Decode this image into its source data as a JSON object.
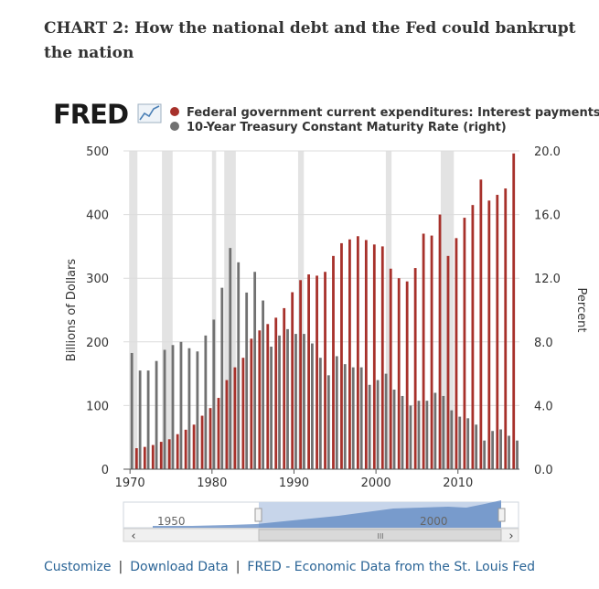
{
  "header": {
    "title": "CHART 2: How the national debt and the Fed could bankrupt the nation"
  },
  "logo_text": "FRED",
  "footer": {
    "customize": "Customize",
    "download": "Download Data",
    "source": "FRED - Economic Data from the St. Louis Fed"
  },
  "navigator": {
    "label_left": "1950",
    "label_right": "2000"
  },
  "chart_data": {
    "type": "bar",
    "title": "",
    "legend_position": "top",
    "grid": true,
    "xlabel": "",
    "x_ticks": [
      "1970",
      "1980",
      "1990",
      "2000",
      "2010"
    ],
    "x_range": [
      1969.2,
      2017.5
    ],
    "y_left": {
      "label": "Billions of Dollars",
      "ticks": [
        "0",
        "100",
        "200",
        "300",
        "400",
        "500"
      ],
      "range": [
        0,
        500
      ]
    },
    "y_right": {
      "label": "Percent",
      "ticks": [
        "0.0",
        "4.0",
        "8.0",
        "12.0",
        "16.0",
        "20.0"
      ],
      "range": [
        0,
        20
      ]
    },
    "recessions": [
      [
        1969.9,
        1970.9
      ],
      [
        1973.9,
        1975.2
      ],
      [
        1980.0,
        1980.5
      ],
      [
        1981.5,
        1982.9
      ],
      [
        1990.5,
        1991.2
      ],
      [
        2001.2,
        2001.9
      ],
      [
        2007.9,
        2009.5
      ]
    ],
    "x": [
      1969,
      1970,
      1971,
      1972,
      1973,
      1974,
      1975,
      1976,
      1977,
      1978,
      1979,
      1980,
      1981,
      1982,
      1983,
      1984,
      1985,
      1986,
      1987,
      1988,
      1989,
      1990,
      1991,
      1992,
      1993,
      1994,
      1995,
      1996,
      1997,
      1998,
      1999,
      2000,
      2001,
      2002,
      2003,
      2004,
      2005,
      2006,
      2007,
      2008,
      2009,
      2010,
      2011,
      2012,
      2013,
      2014,
      2015,
      2016,
      2017
    ],
    "series": [
      {
        "name": "Federal government current expenditures: Interest payments (left)",
        "color": "#a7312b",
        "axis": "left",
        "values": [
          null,
          33,
          35,
          38,
          43,
          47,
          55,
          62,
          70,
          84,
          96,
          112,
          140,
          160,
          175,
          205,
          218,
          228,
          238,
          253,
          278,
          297,
          306,
          304,
          310,
          335,
          355,
          361,
          366,
          360,
          353,
          350,
          315,
          300,
          295,
          316,
          370,
          367,
          400,
          335,
          363,
          395,
          415,
          455,
          422,
          431,
          441,
          496,
          null
        ]
      },
      {
        "name": "10-Year Treasury Constant Maturity Rate (right)",
        "color": "#717171",
        "axis": "right",
        "values": [
          7.3,
          6.2,
          6.2,
          6.8,
          7.5,
          7.8,
          8.0,
          7.6,
          7.4,
          8.4,
          9.4,
          11.4,
          13.9,
          13.0,
          11.1,
          12.4,
          10.6,
          7.7,
          8.4,
          8.8,
          8.5,
          8.5,
          7.9,
          7.0,
          5.9,
          7.1,
          6.6,
          6.4,
          6.4,
          5.3,
          5.6,
          6.0,
          5.0,
          4.6,
          4.0,
          4.3,
          4.3,
          4.8,
          4.6,
          3.7,
          3.3,
          3.2,
          2.8,
          1.8,
          2.4,
          2.5,
          2.1,
          1.8,
          2.3
        ]
      }
    ]
  }
}
